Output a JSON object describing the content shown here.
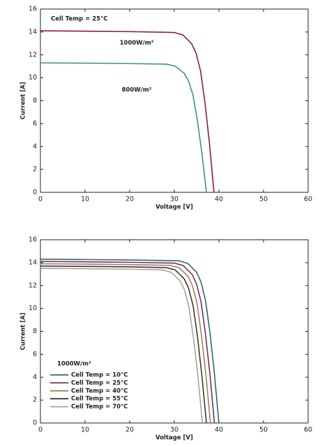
{
  "chart_data": [
    {
      "type": "line",
      "annotation": "Cell Temp = 25°C",
      "xlabel": "Voltage [V]",
      "ylabel": "Current [A]",
      "xlim": [
        0,
        60
      ],
      "ylim": [
        0,
        16
      ],
      "xticks": [
        0,
        10,
        20,
        30,
        40,
        50,
        60
      ],
      "yticks": [
        0,
        2,
        4,
        6,
        8,
        10,
        12,
        14,
        16
      ],
      "legend": "inline",
      "series": [
        {
          "name": "1000W/m²",
          "color": "#8b1e2a",
          "x": [
            0,
            10,
            20,
            29.9,
            31.9,
            33.9,
            34.9,
            35.9,
            36.9,
            37.9,
            38.9
          ],
          "values": [
            14.1,
            14.07,
            14.03,
            13.96,
            13.75,
            12.97,
            12.13,
            10.58,
            7.76,
            4.23,
            0
          ]
        },
        {
          "name": "800W/m²",
          "color": "#3c9a5c",
          "x": [
            0,
            10,
            20,
            28.2,
            30.2,
            32.2,
            33.2,
            34.2,
            35.2,
            36.2,
            37.2
          ],
          "values": [
            11.3,
            11.28,
            11.24,
            11.19,
            11.02,
            10.4,
            9.72,
            8.48,
            6.22,
            3.39,
            0
          ]
        }
      ]
    },
    {
      "type": "line",
      "legend_title": "1000W/m²",
      "xlabel": "Voltage [V]",
      "ylabel": "Current [A]",
      "xlim": [
        0,
        60
      ],
      "ylim": [
        0,
        16
      ],
      "xticks": [
        0,
        10,
        20,
        30,
        40,
        50,
        60
      ],
      "yticks": [
        0,
        2,
        4,
        6,
        8,
        10,
        12,
        14,
        16
      ],
      "legend": "lower left",
      "series": [
        {
          "name": "Cell Temp = 10°C",
          "color": "#2f6b5a",
          "x": [
            0,
            10,
            20,
            31,
            33,
            35,
            36,
            37,
            38,
            39,
            40
          ],
          "values": [
            14.3,
            14.27,
            14.23,
            14.16,
            13.94,
            13.16,
            12.3,
            10.7,
            7.9,
            4.3,
            0
          ]
        },
        {
          "name": "Cell Temp = 25°C",
          "color": "#7b2a6b",
          "x": [
            0,
            10,
            20,
            30,
            32,
            34,
            35,
            36,
            37,
            38,
            39
          ],
          "values": [
            14.1,
            14.07,
            14.03,
            13.96,
            13.75,
            12.97,
            12.13,
            10.58,
            7.76,
            4.23,
            0
          ]
        },
        {
          "name": "Cell Temp = 40°C",
          "color": "#9a8558",
          "x": [
            0,
            10,
            20,
            29.1,
            31.1,
            33.1,
            34.1,
            35.1,
            36.1,
            37.1,
            38.1
          ],
          "values": [
            13.9,
            13.87,
            13.83,
            13.76,
            13.55,
            12.79,
            11.95,
            10.43,
            7.65,
            4.17,
            0
          ]
        },
        {
          "name": "Cell Temp = 55°C",
          "color": "#3e3a2c",
          "x": [
            0,
            10,
            20,
            28.2,
            30.2,
            32.2,
            33.2,
            34.2,
            35.2,
            36.2,
            37.2
          ],
          "values": [
            13.7,
            13.67,
            13.63,
            13.56,
            13.36,
            12.6,
            11.78,
            10.28,
            7.54,
            4.11,
            0
          ]
        },
        {
          "name": "Cell Temp = 70°C",
          "color": "#a4a4a4",
          "x": [
            0,
            10,
            20,
            27.3,
            29.3,
            31.3,
            32.3,
            33.3,
            34.3,
            35.3,
            36.3
          ],
          "values": [
            13.5,
            13.47,
            13.43,
            13.37,
            13.16,
            12.42,
            11.61,
            10.13,
            7.43,
            4.05,
            0
          ]
        }
      ]
    }
  ]
}
